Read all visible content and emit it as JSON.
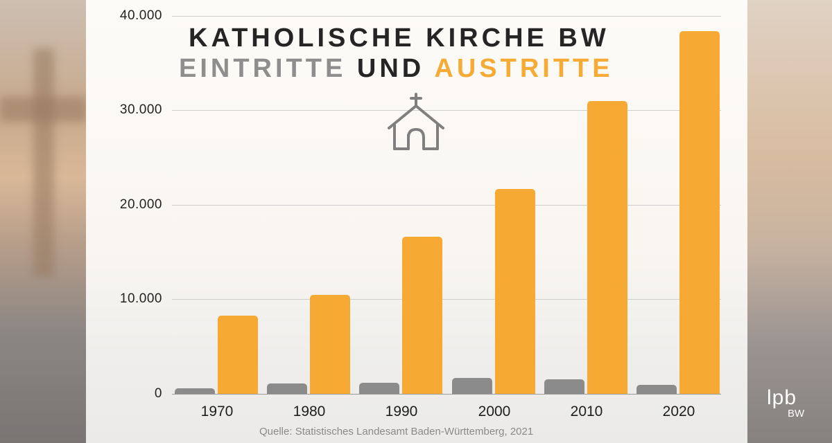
{
  "title": {
    "line1": "KATHOLISCHE KIRCHE BW",
    "line2_part1": "EINTRITTE",
    "line2_part2": "UND",
    "line2_part3": "AUSTRITTE"
  },
  "icon": "church-icon",
  "source": "Quelle: Statistisches Landesamt Baden-Württemberg, 2021",
  "logo": {
    "main": "lpb",
    "sub": "BW"
  },
  "colors": {
    "eintritte": "#8b8b8c",
    "austritte": "#f7aa33",
    "text": "#252525"
  },
  "y_ticks": [
    "40.000",
    "30.000",
    "20.000",
    "10.000",
    "0"
  ],
  "x_labels": [
    "1970",
    "1980",
    "1990",
    "2000",
    "2010",
    "2020"
  ],
  "chart_data": {
    "type": "bar",
    "title": "Katholische Kirche BW – Eintritte und Austritte",
    "categories": [
      "1970",
      "1980",
      "1990",
      "2000",
      "2010",
      "2020"
    ],
    "series": [
      {
        "name": "Eintritte",
        "color": "#8b8b8c",
        "values": [
          580,
          1100,
          1170,
          1680,
          1530,
          950
        ]
      },
      {
        "name": "Austritte",
        "color": "#f7aa33",
        "values": [
          8250,
          10440,
          16570,
          21600,
          30880,
          38250
        ]
      }
    ],
    "xlabel": "",
    "ylabel": "",
    "ylim": [
      0,
      40000
    ],
    "yticks": [
      0,
      10000,
      20000,
      30000,
      40000
    ],
    "grid": true,
    "legend": "encoded in title colors (grey = Eintritte, orange = Austritte)",
    "annotation": "Quelle: Statistisches Landesamt Baden-Württemberg, 2021"
  }
}
